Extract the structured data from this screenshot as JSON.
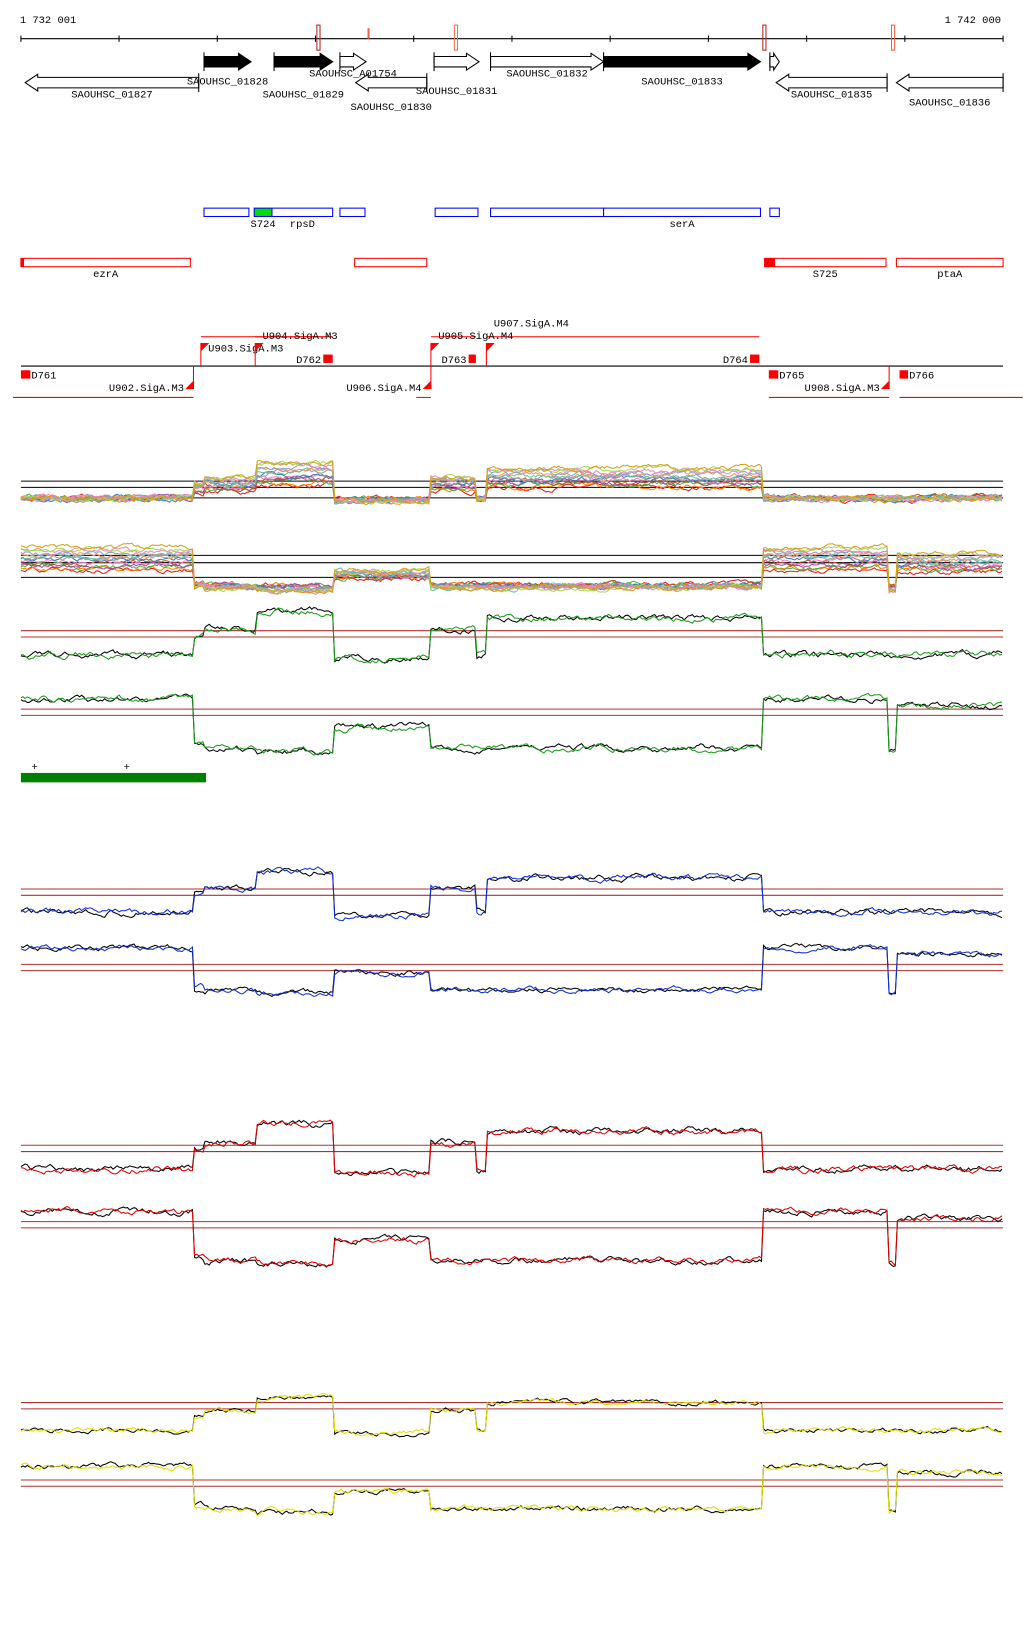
{
  "ruler": {
    "start": 1732001,
    "end": 1742000,
    "start_label": "1 732 001",
    "end_label": "1 742 000",
    "tick_interval": 1000,
    "marks": [
      {
        "pos": 1735030,
        "color": "#b22222",
        "style": "box"
      },
      {
        "pos": 1735540,
        "color": "#f06040",
        "style": "tick"
      },
      {
        "pos": 1736430,
        "color": "#f07050",
        "style": "box"
      },
      {
        "pos": 1739570,
        "color": "#b22222",
        "style": "box"
      },
      {
        "pos": 1740880,
        "color": "#f06040",
        "style": "box"
      }
    ]
  },
  "genes": [
    {
      "name": "SAOUHSC_01827",
      "start": 1732044,
      "end": 1733811,
      "strand": "-",
      "fill": "open"
    },
    {
      "name": "SAOUHSC_01828",
      "start": 1733865,
      "end": 1734344,
      "strand": "+",
      "fill": "solid"
    },
    {
      "name": "SAOUHSC_01829",
      "start": 1734578,
      "end": 1735175,
      "strand": "+",
      "fill": "solid"
    },
    {
      "name": "SAOUHSC_A01754",
      "start": 1735249,
      "end": 1735515,
      "strand": "+",
      "fill": "open"
    },
    {
      "name": "SAOUHSC_01830",
      "start": 1735409,
      "end": 1736133,
      "strand": "-",
      "fill": "open"
    },
    {
      "name": "SAOUHSC_01831",
      "start": 1736207,
      "end": 1736665,
      "strand": "+",
      "fill": "open"
    },
    {
      "name": "SAOUHSC_01832",
      "start": 1736782,
      "end": 1737933,
      "strand": "+",
      "fill": "open"
    },
    {
      "name": "SAOUHSC_01833",
      "start": 1737933,
      "end": 1739530,
      "strand": "+",
      "fill": "solid"
    },
    {
      "name": "",
      "start": 1739626,
      "end": 1739722,
      "strand": "+",
      "fill": "open"
    },
    {
      "name": "SAOUHSC_01835",
      "start": 1739690,
      "end": 1740819,
      "strand": "-",
      "fill": "open"
    },
    {
      "name": "SAOUHSC_01836",
      "start": 1740914,
      "end": 1742000,
      "strand": "-",
      "fill": "open"
    }
  ],
  "plus_features": {
    "color": "#0000ff",
    "items": [
      {
        "name": "",
        "start": 1733865,
        "end": 1734322
      },
      {
        "name": "S724",
        "start": 1734376,
        "end": 1734557,
        "filled": "#00dd00"
      },
      {
        "name": "rpsD",
        "start": 1734557,
        "end": 1735175
      },
      {
        "name": "",
        "start": 1735249,
        "end": 1735504
      },
      {
        "name": "",
        "start": 1736218,
        "end": 1736654
      },
      {
        "name": "",
        "start": 1736782,
        "end": 1737933
      },
      {
        "name": "serA",
        "start": 1737933,
        "end": 1739530
      },
      {
        "name": "",
        "start": 1739626,
        "end": 1739722
      }
    ]
  },
  "minus_features": {
    "color": "#ff0000",
    "items": [
      {
        "name": "ezrA",
        "start": 1732001,
        "end": 1733726,
        "box_end": 1732033
      },
      {
        "name": "",
        "start": 1735398,
        "end": 1736133
      },
      {
        "name": "S725",
        "start": 1739572,
        "end": 1740808,
        "box_end": 1739679
      },
      {
        "name": "ptaA",
        "start": 1740914,
        "end": 1742000
      }
    ]
  },
  "annotations": {
    "color": "#ff0000",
    "items": [
      {
        "name": "D761",
        "type": "box",
        "side": "below",
        "start": 1732001,
        "end": 1732097
      },
      {
        "name": "U902.SigA.M3",
        "type": "flag",
        "side": "below",
        "pos": 1733758
      },
      {
        "name": "U903.SigA.M3",
        "type": "flag",
        "side": "above",
        "pos": 1733833
      },
      {
        "name": "U904.SigA.M3",
        "type": "flag",
        "side": "above",
        "pos": 1734386
      },
      {
        "name": "D762",
        "type": "box",
        "side": "above",
        "start": 1735079,
        "end": 1735175
      },
      {
        "name": "U906.SigA.M4",
        "type": "flag",
        "side": "below",
        "pos": 1736175
      },
      {
        "name": "U905.SigA.M4",
        "type": "flag",
        "side": "above",
        "pos": 1736175
      },
      {
        "name": "D763",
        "type": "box",
        "side": "above",
        "start": 1736559,
        "end": 1736633
      },
      {
        "name": "U907.SigA.M4",
        "type": "flag",
        "side": "above",
        "pos": 1736740
      },
      {
        "name": "D764",
        "type": "box",
        "side": "above",
        "start": 1739424,
        "end": 1739519
      },
      {
        "name": "D765",
        "type": "box",
        "side": "below",
        "start": 1739615,
        "end": 1739711
      },
      {
        "name": "U908.SigA.M3",
        "type": "flag",
        "side": "below",
        "pos": 1740840
      },
      {
        "name": "D766",
        "type": "box",
        "side": "below",
        "start": 1740946,
        "end": 1741033
      }
    ],
    "spans_above": [
      [
        1733833,
        1735175
      ],
      [
        1734386,
        1735175
      ],
      [
        1736175,
        1736633
      ],
      [
        1736740,
        1739519
      ]
    ],
    "spans_below": [
      [
        1731920,
        1733758
      ],
      [
        1736026,
        1736175
      ],
      [
        1739615,
        1740840
      ],
      [
        1740946,
        1742200
      ]
    ]
  },
  "segments_bar": {
    "color": "#008000",
    "start": 1732001,
    "end": 1733886,
    "marks": [
      1732140,
      1733078
    ]
  },
  "profiles": {
    "breaks": [
      1733758,
      1733865,
      1734397,
      1735175,
      1736175,
      1736633,
      1736740,
      1739541,
      1740819,
      1740904
    ],
    "plus_levels": [
      0.2,
      0.45,
      0.55,
      0.8,
      0.15,
      0.55,
      0.2,
      0.7,
      0.2,
      0.2,
      0.2
    ],
    "minus_levels": [
      0.8,
      0.15,
      0.1,
      0.05,
      0.4,
      0.1,
      0.1,
      0.1,
      0.8,
      0.05,
      0.7
    ]
  },
  "panels": [
    {
      "id": "multi",
      "series_colors": [
        "#e41a1c",
        "#ff7f00",
        "#4daf4a",
        "#984ea3",
        "#a65628",
        "#f781bf",
        "#377eb8",
        "#999999",
        "#66c2a5",
        "#fc8d62",
        "#8da0cb",
        "#e78ac3",
        "#a6d854",
        "#d4a017"
      ],
      "ref_color": "#000000"
    },
    {
      "id": "green",
      "series_colors": [
        "#000000",
        "#1a9a1a"
      ],
      "ref_color": "#b03030"
    },
    {
      "id": "blue",
      "series_colors": [
        "#000000",
        "#1030d0"
      ],
      "ref_color": "#b03030"
    },
    {
      "id": "red",
      "series_colors": [
        "#000000",
        "#e00000"
      ],
      "ref_color": "#b03030"
    },
    {
      "id": "yellow",
      "series_colors": [
        "#000000",
        "#e0e000"
      ],
      "ref_color": "#b03030"
    }
  ]
}
